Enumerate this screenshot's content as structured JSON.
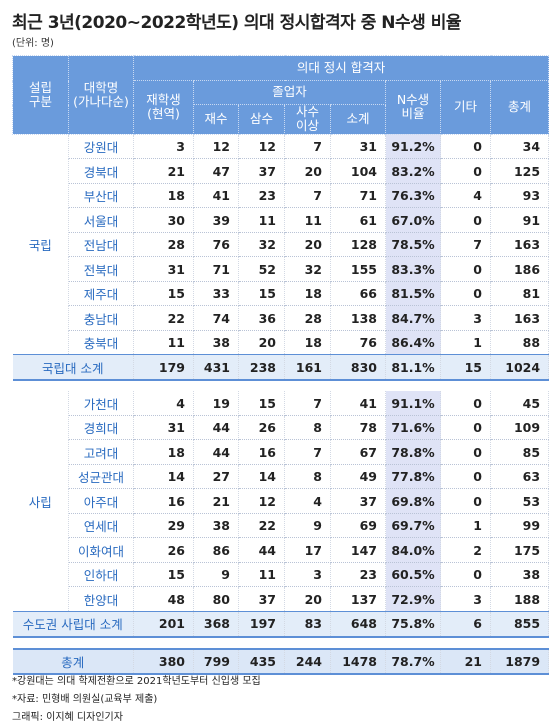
{
  "header": {
    "title": "최근 3년(2020~2022학년도) 의대 정시합격자 중 N수생 비율",
    "unit": "(단위: 명)"
  },
  "table": {
    "columns": {
      "type": "설립\n구분",
      "school": "대학명\n(가나다순)",
      "group": "의대 정시 합격자",
      "enrolled": "재학생\n(현역)",
      "graduates": "졸업자",
      "second": "재수",
      "third": "삼수",
      "fourth": "사수\n이상",
      "subtotal": "소계",
      "ratio": "N수생\n비율",
      "other": "기타",
      "total": "총계"
    },
    "sections": [
      {
        "label": "국립",
        "rows": [
          [
            "강원대",
            3,
            12,
            12,
            7,
            31,
            "91.2%",
            0,
            34
          ],
          [
            "경북대",
            21,
            47,
            37,
            20,
            104,
            "83.2%",
            0,
            125
          ],
          [
            "부산대",
            18,
            41,
            23,
            7,
            71,
            "76.3%",
            4,
            93
          ],
          [
            "서울대",
            30,
            39,
            11,
            11,
            61,
            "67.0%",
            0,
            91
          ],
          [
            "전남대",
            28,
            76,
            32,
            20,
            128,
            "78.5%",
            7,
            163
          ],
          [
            "전북대",
            31,
            71,
            52,
            32,
            155,
            "83.3%",
            0,
            186
          ],
          [
            "제주대",
            15,
            33,
            15,
            18,
            66,
            "81.5%",
            0,
            81
          ],
          [
            "충남대",
            22,
            74,
            36,
            28,
            138,
            "84.7%",
            3,
            163
          ],
          [
            "충북대",
            11,
            38,
            20,
            18,
            76,
            "86.4%",
            1,
            88
          ]
        ],
        "subtotal": [
          "국립대 소계",
          179,
          431,
          238,
          161,
          830,
          "81.1%",
          15,
          1024
        ]
      },
      {
        "label": "사립",
        "rows": [
          [
            "가천대",
            4,
            19,
            15,
            7,
            41,
            "91.1%",
            0,
            45
          ],
          [
            "경희대",
            31,
            44,
            26,
            8,
            78,
            "71.6%",
            0,
            109
          ],
          [
            "고려대",
            18,
            44,
            16,
            7,
            67,
            "78.8%",
            0,
            85
          ],
          [
            "성균관대",
            14,
            27,
            14,
            8,
            49,
            "77.8%",
            0,
            63
          ],
          [
            "아주대",
            16,
            21,
            12,
            4,
            37,
            "69.8%",
            0,
            53
          ],
          [
            "연세대",
            29,
            38,
            22,
            9,
            69,
            "69.7%",
            1,
            99
          ],
          [
            "이화여대",
            26,
            86,
            44,
            17,
            147,
            "84.0%",
            2,
            175
          ],
          [
            "인하대",
            15,
            9,
            11,
            3,
            23,
            "60.5%",
            0,
            38
          ],
          [
            "한양대",
            48,
            80,
            37,
            20,
            137,
            "72.9%",
            3,
            188
          ]
        ],
        "subtotal": [
          "수도권 사립대 소계",
          201,
          368,
          197,
          83,
          648,
          "75.8%",
          6,
          855
        ]
      }
    ],
    "total": [
      "총계",
      380,
      799,
      435,
      244,
      1478,
      "78.7%",
      21,
      1879
    ]
  },
  "notes": [
    "*강원대는 의대 학제전환으로 2021학년도부터 신입생 모집",
    "*자료: 민형배 의원실(교육부 제출)",
    "그래픽: 이지혜 디자인기자"
  ]
}
